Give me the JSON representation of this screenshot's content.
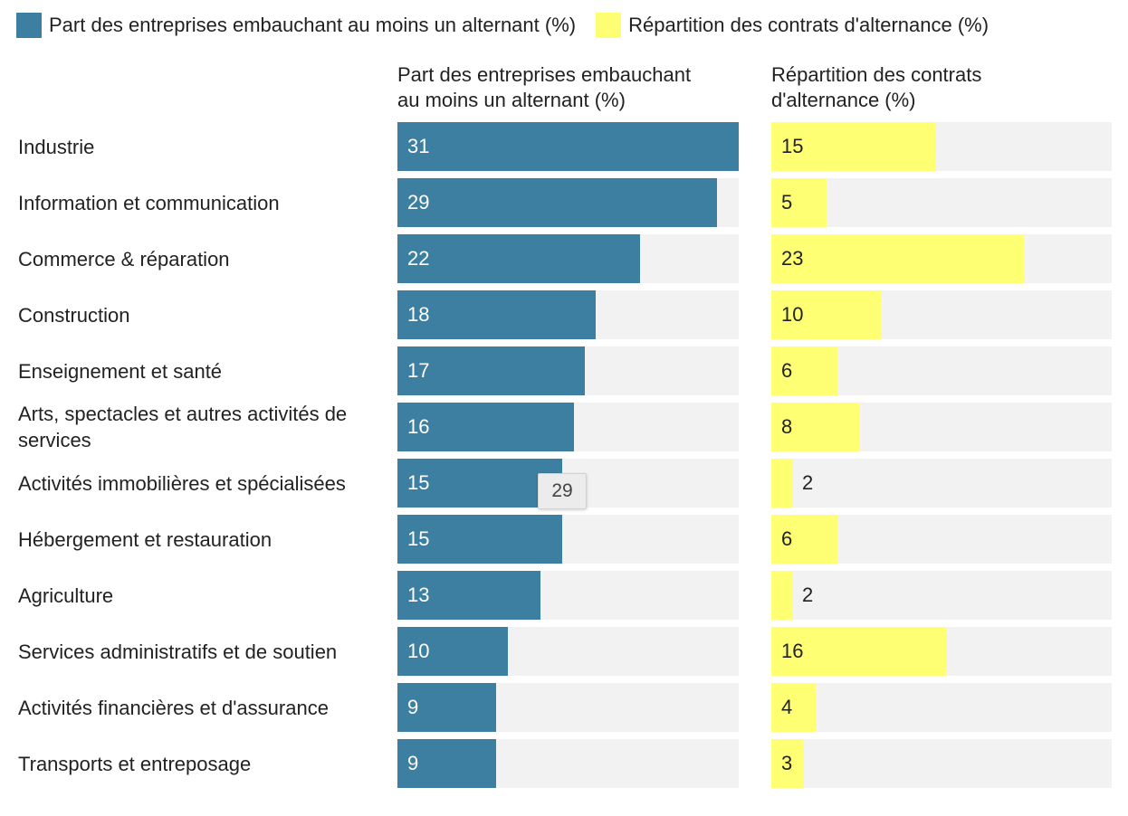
{
  "legend": [
    {
      "label": "Part des entreprises embauchant au moins un alternant (%)",
      "color": "#3d7fa0"
    },
    {
      "label": "Répartition des contrats d'alternance (%)",
      "color": "#ffff73"
    }
  ],
  "headers": {
    "left_line1": "Part des entreprises embauchant",
    "left_line2": "au moins un alternant (%)",
    "right_line1": "Répartition des contrats",
    "right_line2": "d'alternance (%)"
  },
  "tooltip": {
    "value": "29"
  },
  "chart_data": {
    "type": "bar",
    "categories": [
      "Industrie",
      "Information et communication",
      "Commerce & réparation",
      "Construction",
      "Enseignement et santé",
      "Arts, spectacles et autres activités de services",
      "Activités immobilières et spécialisées",
      "Hébergement et restauration",
      "Agriculture",
      "Services administratifs et de soutien",
      "Activités financières et d'assurance",
      "Transports et entreposage"
    ],
    "series": [
      {
        "name": "Part des entreprises embauchant au moins un alternant (%)",
        "color": "#3d7fa0",
        "values": [
          31,
          29,
          22,
          18,
          17,
          16,
          15,
          15,
          13,
          10,
          9,
          9
        ],
        "xlim": [
          0,
          31
        ]
      },
      {
        "name": "Répartition des contrats d'alternance (%)",
        "color": "#ffff73",
        "values": [
          15,
          5,
          23,
          10,
          6,
          8,
          2,
          6,
          2,
          16,
          4,
          3
        ],
        "xlim": [
          0,
          31
        ]
      }
    ],
    "legend_position": "top-left",
    "grid": false
  }
}
